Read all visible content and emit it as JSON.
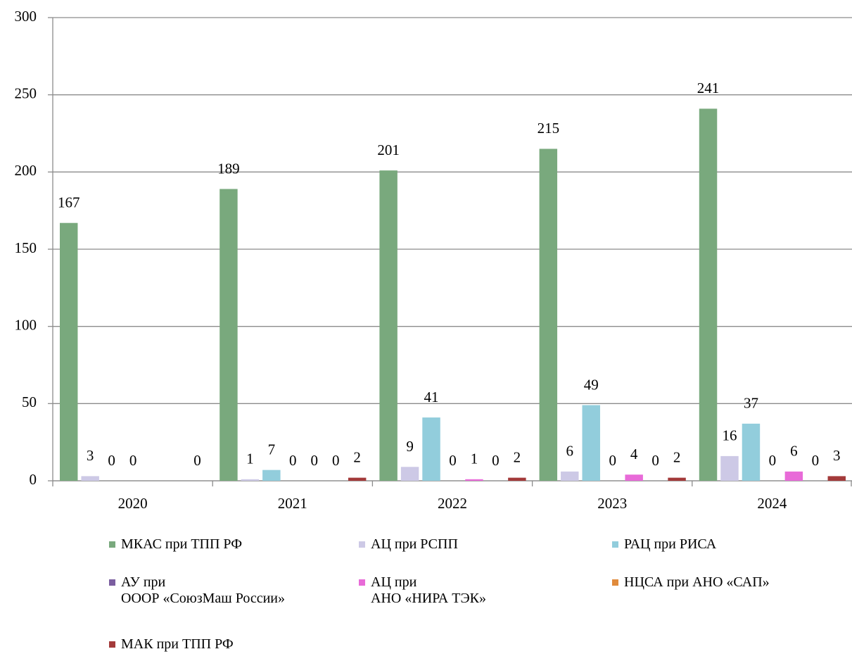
{
  "chart_data": {
    "type": "bar",
    "categories": [
      "2020",
      "2021",
      "2022",
      "2023",
      "2024"
    ],
    "series": [
      {
        "name": "МКАС при ТПП РФ",
        "color": "#79a97d",
        "values": [
          167,
          189,
          201,
          215,
          241
        ]
      },
      {
        "name": "АЦ при РСПП",
        "color": "#cdc9e6",
        "values": [
          3,
          1,
          9,
          6,
          16
        ]
      },
      {
        "name": "РАЦ при РИСА",
        "color": "#92cddc",
        "values": [
          0,
          7,
          41,
          49,
          37
        ]
      },
      {
        "name": "АУ при\nОООР «СоюзМаш России»",
        "color": "#7b5ea0",
        "values": [
          0,
          0,
          0,
          0,
          0
        ]
      },
      {
        "name": "АЦ при\nАНО «НИРА ТЭК»",
        "color": "#e86bd8",
        "values": [
          null,
          0,
          1,
          4,
          6
        ]
      },
      {
        "name": "НЦСА при АНО «САП»",
        "color": "#e08b3c",
        "values": [
          null,
          0,
          0,
          0,
          0
        ]
      },
      {
        "name": "МАК при ТПП РФ",
        "color": "#a33a3a",
        "values": [
          0,
          2,
          2,
          2,
          3
        ]
      }
    ],
    "ylim": [
      0,
      300
    ],
    "yticks": [
      0,
      50,
      100,
      150,
      200,
      250,
      300
    ],
    "grid": true
  }
}
